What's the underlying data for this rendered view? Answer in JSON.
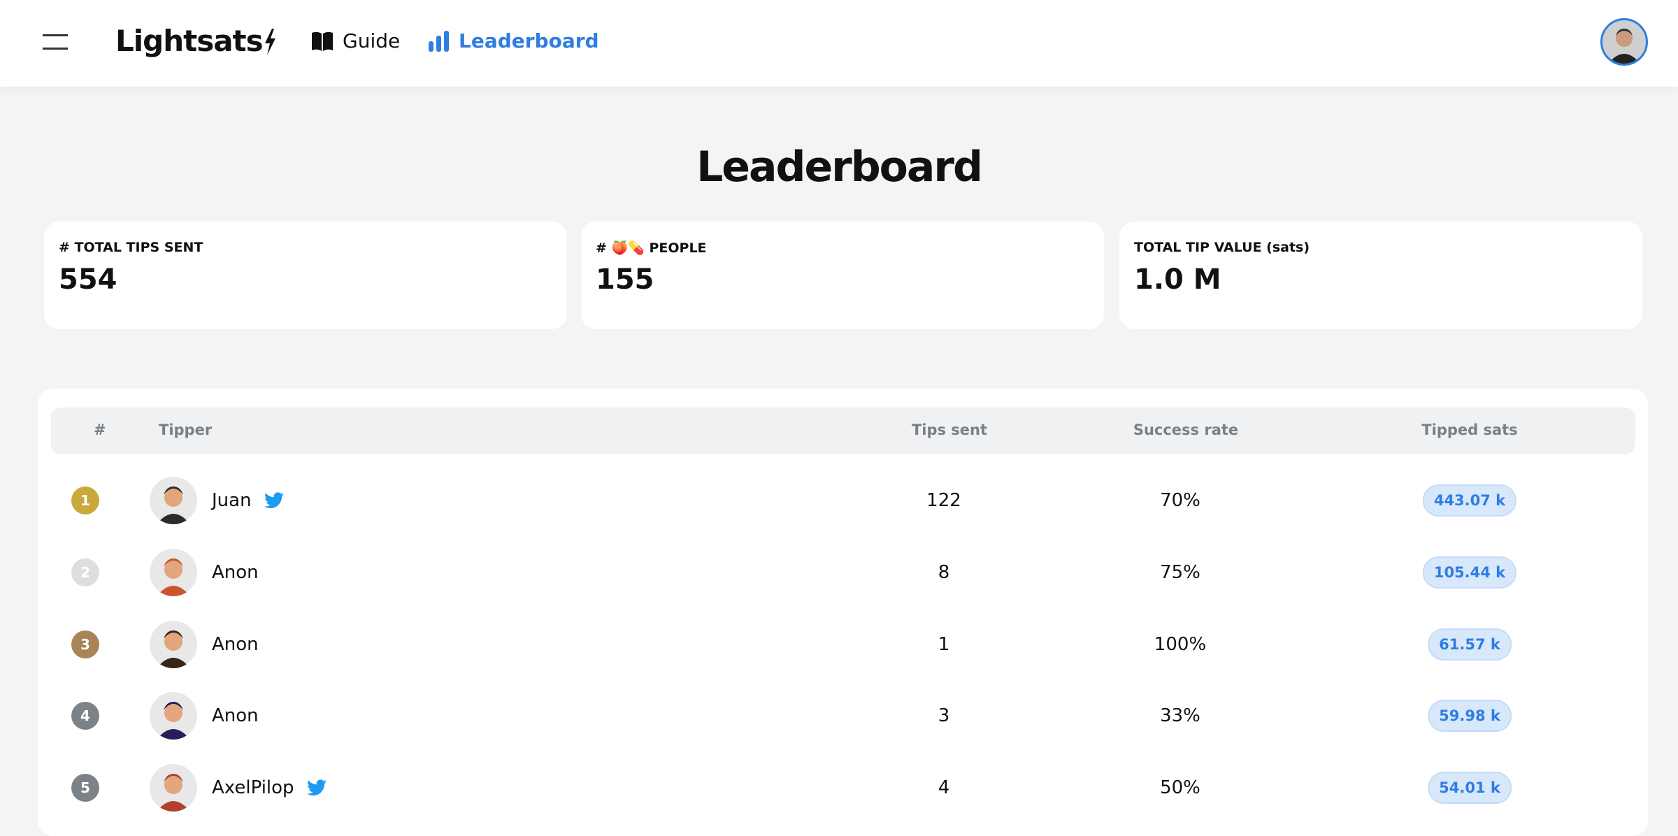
{
  "header": {
    "logo": "Lightsats",
    "nav": [
      "Guide",
      "Leaderboard"
    ]
  },
  "page_title": "Leaderboard",
  "stats": [
    {
      "label": "# TOTAL TIPS SENT",
      "value": "554"
    },
    {
      "label": "# 🍑💊 PEOPLE",
      "value": "155"
    },
    {
      "label": "TOTAL TIP VALUE (sats)",
      "value": "1.0 M"
    }
  ],
  "table": {
    "headers": [
      "#",
      "Tipper",
      "Tips sent",
      "Success rate",
      "Tipped sats"
    ],
    "rows": [
      {
        "rank": "1",
        "name": "Juan",
        "twitter": true,
        "tips": "122",
        "success": "70%",
        "sats": "443.07 k"
      },
      {
        "rank": "2",
        "name": "Anon",
        "twitter": false,
        "tips": "8",
        "success": "75%",
        "sats": "105.44 k"
      },
      {
        "rank": "3",
        "name": "Anon",
        "twitter": false,
        "tips": "1",
        "success": "100%",
        "sats": "61.57 k"
      },
      {
        "rank": "4",
        "name": "Anon",
        "twitter": false,
        "tips": "3",
        "success": "33%",
        "sats": "59.98 k"
      },
      {
        "rank": "5",
        "name": "AxelPilop",
        "twitter": true,
        "tips": "4",
        "success": "50%",
        "sats": "54.01 k"
      }
    ]
  }
}
